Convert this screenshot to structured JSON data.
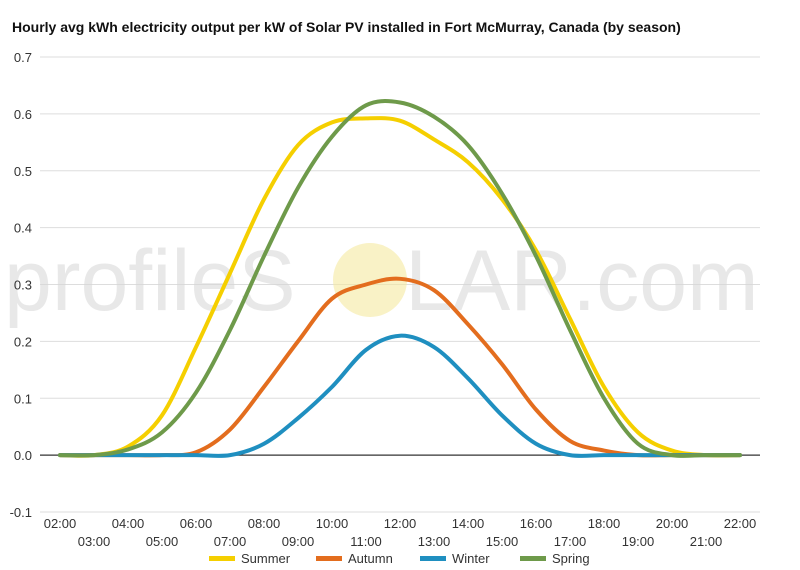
{
  "title": "Hourly avg kWh electricity output per kW of Solar PV installed in Fort McMurray, Canada (by season)",
  "watermark": {
    "left_text": "profileS",
    "right_text": "LAR.com",
    "sun_color": "#f5e9a0"
  },
  "chart_data": {
    "type": "line",
    "title": "Hourly avg kWh electricity output per kW of Solar PV installed in Fort McMurray, Canada (by season)",
    "xlabel": "",
    "ylabel": "",
    "x": [
      "02:00",
      "03:00",
      "04:00",
      "05:00",
      "06:00",
      "07:00",
      "08:00",
      "09:00",
      "10:00",
      "11:00",
      "12:00",
      "13:00",
      "14:00",
      "15:00",
      "16:00",
      "17:00",
      "18:00",
      "19:00",
      "20:00",
      "21:00",
      "22:00"
    ],
    "x_labels_top": [
      "02:00",
      "04:00",
      "06:00",
      "08:00",
      "10:00",
      "12:00",
      "14:00",
      "16:00",
      "18:00",
      "20:00",
      "22:00"
    ],
    "x_labels_bottom": [
      "03:00",
      "05:00",
      "07:00",
      "09:00",
      "11:00",
      "13:00",
      "15:00",
      "17:00",
      "19:00",
      "21:00"
    ],
    "ylim": [
      -0.1,
      0.7
    ],
    "yticks": [
      "-0.1",
      "0.0",
      "0.1",
      "0.2",
      "0.3",
      "0.4",
      "0.5",
      "0.6",
      "0.7"
    ],
    "grid": true,
    "legend_position": "bottom",
    "series": [
      {
        "name": "Summer",
        "color": "#f5cf00",
        "values": [
          0.0,
          0.0,
          0.015,
          0.07,
          0.19,
          0.32,
          0.45,
          0.545,
          0.585,
          0.592,
          0.588,
          0.555,
          0.515,
          0.45,
          0.36,
          0.24,
          0.12,
          0.04,
          0.008,
          0.0,
          0.0
        ]
      },
      {
        "name": "Autumn",
        "color": "#e36d1e",
        "values": [
          0.0,
          0.0,
          0.0,
          0.0,
          0.005,
          0.045,
          0.12,
          0.2,
          0.275,
          0.3,
          0.31,
          0.29,
          0.23,
          0.16,
          0.08,
          0.025,
          0.008,
          0.0,
          0.0,
          0.0,
          0.0
        ]
      },
      {
        "name": "Winter",
        "color": "#1f8fc0",
        "values": [
          0.0,
          0.0,
          0.0,
          0.0,
          0.0,
          0.0,
          0.02,
          0.065,
          0.12,
          0.185,
          0.21,
          0.19,
          0.135,
          0.07,
          0.02,
          0.0,
          0.0,
          0.0,
          0.0,
          0.0,
          0.0
        ]
      },
      {
        "name": "Spring",
        "color": "#6e9a4a",
        "values": [
          0.0,
          0.0,
          0.01,
          0.04,
          0.11,
          0.22,
          0.35,
          0.47,
          0.56,
          0.615,
          0.62,
          0.595,
          0.545,
          0.46,
          0.35,
          0.22,
          0.1,
          0.02,
          0.0,
          0.0,
          0.0
        ]
      }
    ]
  }
}
